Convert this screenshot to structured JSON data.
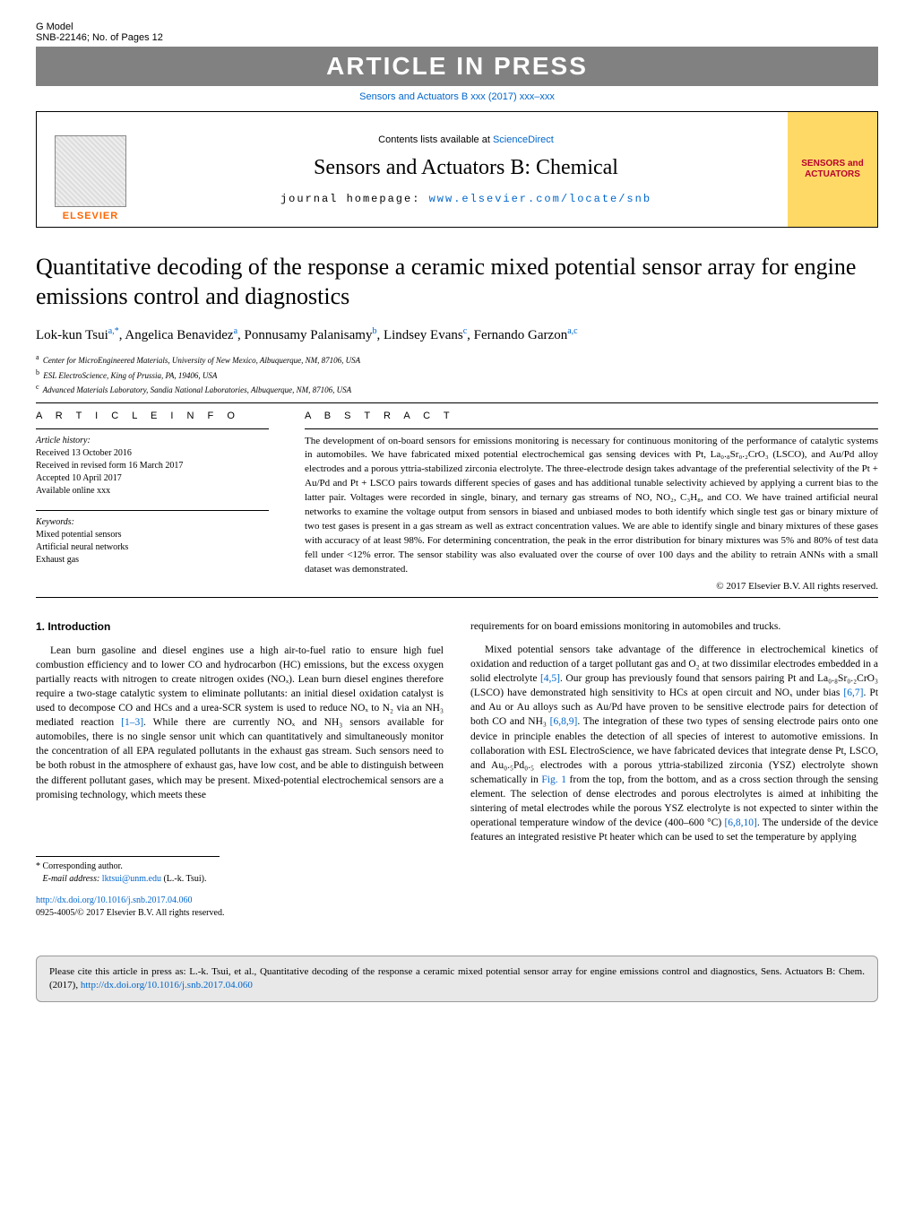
{
  "header": {
    "gmodel": "G Model",
    "code": "SNB-22146;   No. of Pages 12",
    "banner": "ARTICLE IN PRESS",
    "journal_ref": "Sensors and Actuators B xxx (2017) xxx–xxx"
  },
  "journal_box": {
    "elsevier": "ELSEVIER",
    "contents_prefix": "Contents lists available at ",
    "contents_link": "ScienceDirect",
    "title": "Sensors and Actuators B: Chemical",
    "homepage_prefix": "journal homepage: ",
    "homepage_link": "www.elsevier.com/locate/snb",
    "cover_line1": "SENSORS and",
    "cover_line2": "ACTUATORS"
  },
  "article": {
    "title": "Quantitative decoding of the response a ceramic mixed potential sensor array for engine emissions control and diagnostics",
    "authors_html": "Lok-kun Tsui<span class='sup'>a,*</span>, Angelica Benavidez<span class='sup'>a</span>, Ponnusamy Palanisamy<span class='sup'>b</span>, Lindsey Evans<span class='sup'>c</span>, Fernando Garzon<span class='sup'>a,c</span>",
    "affiliations": [
      {
        "sup": "a",
        "text": "Center for MicroEngineered Materials, University of New Mexico, Albuquerque, NM, 87106, USA"
      },
      {
        "sup": "b",
        "text": "ESL ElectroScience, King of Prussia, PA, 19406, USA"
      },
      {
        "sup": "c",
        "text": "Advanced Materials Laboratory, Sandia National Laboratories, Albuquerque, NM, 87106, USA"
      }
    ]
  },
  "info": {
    "heading": "A R T I C L E    I N F O",
    "history_label": "Article history:",
    "received": "Received 13 October 2016",
    "revised": "Received in revised form 16 March 2017",
    "accepted": "Accepted 10 April 2017",
    "online": "Available online xxx",
    "keywords_label": "Keywords:",
    "keywords": [
      "Mixed potential sensors",
      "Artificial neural networks",
      "Exhaust gas"
    ]
  },
  "abstract": {
    "heading": "A B S T R A C T",
    "text": "The development of on-board sensors for emissions monitoring is necessary for continuous monitoring of the performance of catalytic systems in automobiles. We have fabricated mixed potential electrochemical gas sensing devices with Pt, La₀.₈Sr₀.₂CrO₃ (LSCO), and Au/Pd alloy electrodes and a porous yttria-stabilized zirconia electrolyte. The three-electrode design takes advantage of the preferential selectivity of the Pt + Au/Pd and Pt + LSCO pairs towards different species of gases and has additional tunable selectivity achieved by applying a current bias to the latter pair. Voltages were recorded in single, binary, and ternary gas streams of NO, NO₂, C₃H₈, and CO. We have trained artificial neural networks to examine the voltage output from sensors in biased and unbiased modes to both identify which single test gas or binary mixture of two test gases is present in a gas stream as well as extract concentration values. We are able to identify single and binary mixtures of these gases with accuracy of at least 98%. For determining concentration, the peak in the error distribution for binary mixtures was 5% and 80% of test data fell under <12% error. The sensor stability was also evaluated over the course of over 100 days and the ability to retrain ANNs with a small dataset was demonstrated.",
    "copyright": "© 2017 Elsevier B.V. All rights reserved."
  },
  "body": {
    "section_heading": "1.  Introduction",
    "col1_p1": "Lean burn gasoline and diesel engines use a high air-to-fuel ratio to ensure high fuel combustion efficiency and to lower CO and hydrocarbon (HC) emissions, but the excess oxygen partially reacts with nitrogen to create nitrogen oxides (NOₓ). Lean burn diesel engines therefore require a two-stage catalytic system to eliminate pollutants: an initial diesel oxidation catalyst is used to decompose CO and HCs and a urea-SCR system is used to reduce NOₓ to N₂ via an NH₃ mediated reaction ",
    "col1_ref1": "[1–3]",
    "col1_p1b": ". While there are currently NOₓ and NH₃ sensors available for automobiles, there is no single sensor unit which can quantitatively and simultaneously monitor the concentration of all EPA regulated pollutants in the exhaust gas stream. Such sensors need to be both robust in the atmosphere of exhaust gas, have low cost, and be able to distinguish between the different pollutant gases, which may be present. Mixed-potential electrochemical sensors are a promising technology, which meets these",
    "col2_p1": "requirements for on board emissions monitoring in automobiles and trucks.",
    "col2_p2a": "Mixed potential sensors take advantage of the difference in electrochemical kinetics of oxidation and reduction of a target pollutant gas and O₂ at two dissimilar electrodes embedded in a solid electrolyte ",
    "col2_ref1": "[4,5]",
    "col2_p2b": ". Our group has previously found that sensors pairing Pt and La₀.₈Sr₀.₂CrO₃ (LSCO) have demonstrated high sensitivity to HCs at open circuit and NOₓ under bias ",
    "col2_ref2": "[6,7]",
    "col2_p2c": ". Pt and Au or Au alloys such as Au/Pd have proven to be sensitive electrode pairs for detection of both CO and NH₃ ",
    "col2_ref3": "[6,8,9]",
    "col2_p2d": ". The integration of these two types of sensing electrode pairs onto one device in principle enables the detection of all species of interest to automotive emissions. In collaboration with ESL ElectroScience, we have fabricated devices that integrate dense Pt, LSCO, and Au₀.₅Pd₀.₅ electrodes with a porous yttria-stabilized zirconia (YSZ) electrolyte shown schematically in ",
    "col2_fig": "Fig. 1",
    "col2_p2e": " from the top, from the bottom, and as a cross section through the sensing element. The selection of dense electrodes and porous electrolytes is aimed at inhibiting the sintering of metal electrodes while the porous YSZ electrolyte is not expected to sinter within the operational temperature window of the device (400–600 °C) ",
    "col2_ref4": "[6,8,10]",
    "col2_p2f": ". The underside of the device features an integrated resistive Pt heater which can be used to set the temperature by applying"
  },
  "footnotes": {
    "corr": "Corresponding author.",
    "email_label": "E-mail address: ",
    "email": "lktsui@unm.edu",
    "email_suffix": " (L.-k. Tsui).",
    "doi_link": "http://dx.doi.org/10.1016/j.snb.2017.04.060",
    "issn": "0925-4005/© 2017 Elsevier B.V. All rights reserved."
  },
  "cite_box": {
    "text_prefix": "Please cite this article in press as: L.-k. Tsui, et al., Quantitative decoding of the response a ceramic mixed potential sensor array for engine emissions control and diagnostics, Sens. Actuators B: Chem. (2017), ",
    "link": "http://dx.doi.org/10.1016/j.snb.2017.04.060"
  },
  "colors": {
    "banner_bg": "#818181",
    "link": "#0066cc",
    "elsevier_orange": "#ff6600",
    "cover_bg": "#ffd966",
    "cover_text": "#b8002e",
    "cite_bg": "#e8e8e8"
  }
}
